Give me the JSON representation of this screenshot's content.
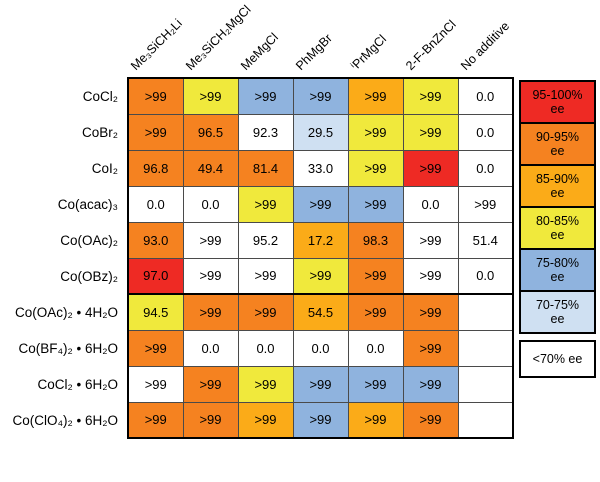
{
  "chart_data": {
    "type": "heatmap",
    "columns": [
      "Me₃SiCH₂Li",
      "Me₃SiCH₂MgCl",
      "MeMgCl",
      "PhMgBr",
      "ⁱPrMgCl",
      "2-F-BnZnCl",
      "No additive"
    ],
    "ee_colors": {
      "95-100": "#ee2a24",
      "90-95": "#f58220",
      "85-90": "#fbab18",
      "80-85": "#f0e93c",
      "75-80": "#8fb3de",
      "70-75": "#cfe0f2",
      "lt70": "#ffffff"
    },
    "legend": [
      {
        "line1": "95-100%",
        "line2": "ee",
        "band": "95-100"
      },
      {
        "line1": "90-95%",
        "line2": "ee",
        "band": "90-95"
      },
      {
        "line1": "85-90%",
        "line2": "ee",
        "band": "85-90"
      },
      {
        "line1": "80-85%",
        "line2": "ee",
        "band": "80-85"
      },
      {
        "line1": "75-80%",
        "line2": "ee",
        "band": "75-80"
      },
      {
        "line1": "70-75%",
        "line2": "ee",
        "band": "70-75"
      },
      {
        "line1": "<70% ee",
        "line2": "",
        "band": "lt70"
      }
    ],
    "groups": [
      {
        "rows": [
          {
            "label": "CoCl₂",
            "cells": [
              {
                "value": ">99",
                "band": "90-95"
              },
              {
                "value": ">99",
                "band": "80-85"
              },
              {
                "value": ">99",
                "band": "75-80"
              },
              {
                "value": ">99",
                "band": "75-80"
              },
              {
                "value": ">99",
                "band": "85-90"
              },
              {
                "value": ">99",
                "band": "80-85"
              },
              {
                "value": "0.0",
                "band": "lt70"
              }
            ]
          },
          {
            "label": "CoBr₂",
            "cells": [
              {
                "value": ">99",
                "band": "90-95"
              },
              {
                "value": "96.5",
                "band": "90-95"
              },
              {
                "value": "92.3",
                "band": "lt70"
              },
              {
                "value": "29.5",
                "band": "70-75"
              },
              {
                "value": ">99",
                "band": "80-85"
              },
              {
                "value": ">99",
                "band": "80-85"
              },
              {
                "value": "0.0",
                "band": "lt70"
              }
            ]
          },
          {
            "label": "CoI₂",
            "cells": [
              {
                "value": "96.8",
                "band": "90-95"
              },
              {
                "value": "49.4",
                "band": "90-95"
              },
              {
                "value": "81.4",
                "band": "90-95"
              },
              {
                "value": "33.0",
                "band": "lt70"
              },
              {
                "value": ">99",
                "band": "80-85"
              },
              {
                "value": ">99",
                "band": "95-100"
              },
              {
                "value": "0.0",
                "band": "lt70"
              }
            ]
          },
          {
            "label": "Co(acac)₃",
            "cells": [
              {
                "value": "0.0",
                "band": "lt70"
              },
              {
                "value": "0.0",
                "band": "lt70"
              },
              {
                "value": ">99",
                "band": "80-85"
              },
              {
                "value": ">99",
                "band": "75-80"
              },
              {
                "value": ">99",
                "band": "75-80"
              },
              {
                "value": "0.0",
                "band": "lt70"
              },
              {
                "value": ">99",
                "band": "lt70"
              }
            ]
          },
          {
            "label": "Co(OAc)₂",
            "cells": [
              {
                "value": "93.0",
                "band": "90-95"
              },
              {
                "value": ">99",
                "band": "lt70"
              },
              {
                "value": "95.2",
                "band": "lt70"
              },
              {
                "value": "17.2",
                "band": "85-90"
              },
              {
                "value": "98.3",
                "band": "90-95"
              },
              {
                "value": ">99",
                "band": "lt70"
              },
              {
                "value": "51.4",
                "band": "lt70"
              }
            ]
          },
          {
            "label": "Co(OBz)₂",
            "cells": [
              {
                "value": "97.0",
                "band": "95-100"
              },
              {
                "value": ">99",
                "band": "lt70"
              },
              {
                "value": ">99",
                "band": "lt70"
              },
              {
                "value": ">99",
                "band": "80-85"
              },
              {
                "value": ">99",
                "band": "90-95"
              },
              {
                "value": ">99",
                "band": "lt70"
              },
              {
                "value": "0.0",
                "band": "lt70"
              }
            ]
          }
        ]
      },
      {
        "rows": [
          {
            "label": "Co(OAc)₂ • 4H₂O",
            "cells": [
              {
                "value": "94.5",
                "band": "80-85"
              },
              {
                "value": ">99",
                "band": "90-95"
              },
              {
                "value": ">99",
                "band": "90-95"
              },
              {
                "value": "54.5",
                "band": "85-90"
              },
              {
                "value": ">99",
                "band": "90-95"
              },
              {
                "value": ">99",
                "band": "90-95"
              },
              null
            ]
          },
          {
            "label": "Co(BF₄)₂ • 6H₂O",
            "cells": [
              {
                "value": ">99",
                "band": "90-95"
              },
              {
                "value": "0.0",
                "band": "lt70"
              },
              {
                "value": "0.0",
                "band": "lt70"
              },
              {
                "value": "0.0",
                "band": "lt70"
              },
              {
                "value": "0.0",
                "band": "lt70"
              },
              {
                "value": ">99",
                "band": "90-95"
              },
              null
            ]
          },
          {
            "label": "CoCl₂ • 6H₂O",
            "cells": [
              {
                "value": ">99",
                "band": "lt70"
              },
              {
                "value": ">99",
                "band": "90-95"
              },
              {
                "value": ">99",
                "band": "80-85"
              },
              {
                "value": ">99",
                "band": "75-80"
              },
              {
                "value": ">99",
                "band": "75-80"
              },
              {
                "value": ">99",
                "band": "75-80"
              },
              null
            ]
          },
          {
            "label": "Co(ClO₄)₂ • 6H₂O",
            "cells": [
              {
                "value": ">99",
                "band": "90-95"
              },
              {
                "value": ">99",
                "band": "90-95"
              },
              {
                "value": ">99",
                "band": "85-90"
              },
              {
                "value": ">99",
                "band": "75-80"
              },
              {
                "value": ">99",
                "band": "85-90"
              },
              {
                "value": ">99",
                "band": "90-95"
              },
              null
            ]
          }
        ]
      }
    ]
  }
}
